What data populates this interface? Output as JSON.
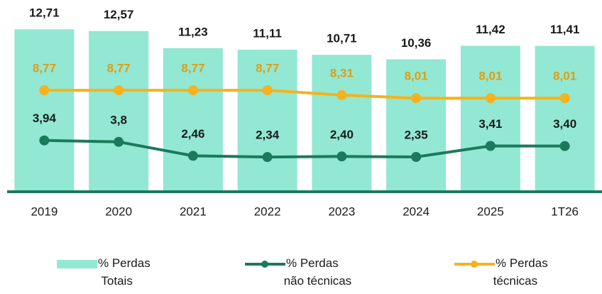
{
  "chart_data": {
    "type": "bar_line",
    "categories": [
      "2019",
      "2020",
      "2021",
      "2022",
      "2023",
      "2024",
      "2025",
      "1T26"
    ],
    "ylim": [
      0,
      13
    ],
    "y2lim": [
      -1,
      15
    ],
    "series": [
      {
        "name": "% Perdas Totais",
        "type": "bar",
        "color": "#92e8d3",
        "label_color": "#1a1a1a",
        "values": [
          12.71,
          12.57,
          11.23,
          11.11,
          10.71,
          10.36,
          11.42,
          11.41
        ],
        "value_labels": [
          "12,71",
          "12,57",
          "11,23",
          "11,11",
          "10,71",
          "10,36",
          "11,42",
          "11,41"
        ]
      },
      {
        "name": "% Perdas não técnicas",
        "type": "line",
        "axis": "y2",
        "color": "#1b7a5c",
        "label_color": "#1a1a1a",
        "values": [
          3.94,
          3.8,
          2.46,
          2.34,
          2.4,
          2.35,
          3.41,
          3.4
        ],
        "value_labels": [
          "3,94",
          "3,8",
          "2,46",
          "2,34",
          "2,40",
          "2,35",
          "3,41",
          "3,40"
        ]
      },
      {
        "name": "% Perdas técnicas",
        "type": "line",
        "axis": "y2",
        "color": "#f5b21e",
        "label_color": "#e09d12",
        "values": [
          8.77,
          8.77,
          8.77,
          8.77,
          8.31,
          8.01,
          8.01,
          8.01
        ],
        "value_labels": [
          "8,77",
          "8,77",
          "8,77",
          "8,77",
          "8,31",
          "8,01",
          "8,01",
          "8,01"
        ]
      }
    ]
  }
}
